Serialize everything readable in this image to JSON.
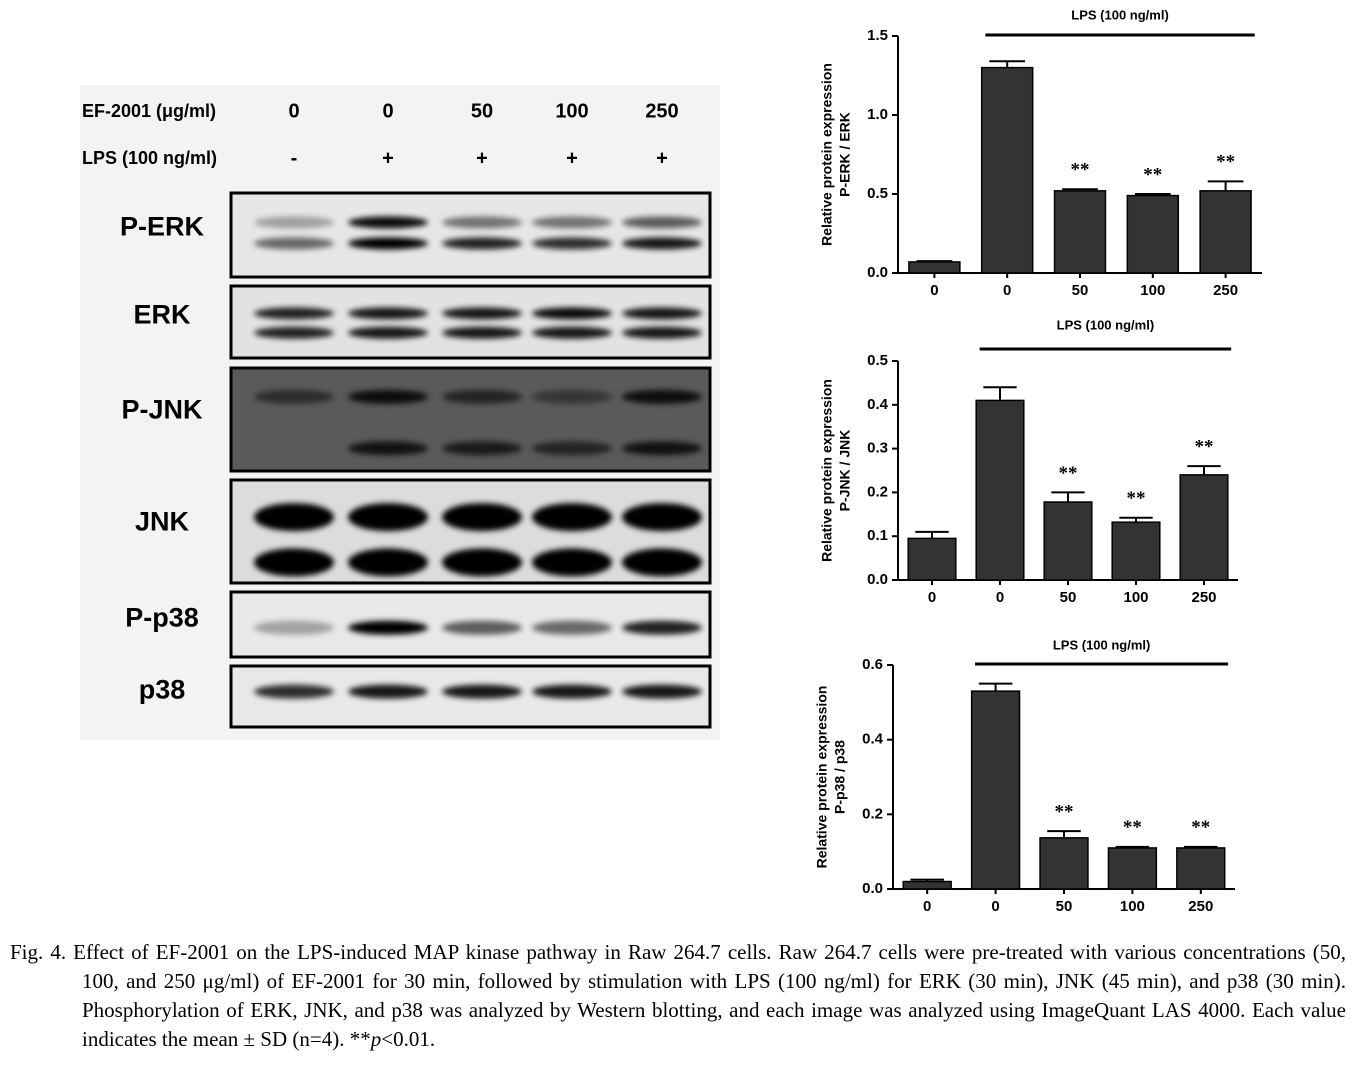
{
  "blot": {
    "header": {
      "ef_label": "EF-2001 (μg/ml)",
      "ef_doses": [
        "0",
        "0",
        "50",
        "100",
        "250"
      ],
      "lps_label": "LPS (100 ng/ml)",
      "lps_signs": [
        "-",
        "+",
        "+",
        "+",
        "+"
      ]
    },
    "rows": [
      "P-ERK",
      "ERK",
      "P-JNK",
      "JNK",
      "P-p38",
      "p38"
    ]
  },
  "chart_data": [
    {
      "type": "bar",
      "ylabel": [
        "Relative protein expression",
        "P-ERK / ERK"
      ],
      "lps_label": "LPS (100 ng/ml)",
      "categories": [
        "0",
        "0",
        "50",
        "100",
        "250"
      ],
      "values": [
        0.07,
        1.3,
        0.52,
        0.49,
        0.52
      ],
      "errors": [
        0.005,
        0.04,
        0.01,
        0.01,
        0.06
      ],
      "annotations": [
        null,
        null,
        "**",
        "**",
        "**"
      ],
      "color": "#333333",
      "ylim": [
        0,
        1.5
      ],
      "yticks": [
        {
          "value": 0,
          "label": "0.0"
        },
        {
          "value": 0.5,
          "label": "0.5"
        },
        {
          "value": 1,
          "label": "1.0"
        },
        {
          "value": 1.5,
          "label": "1.5"
        }
      ]
    },
    {
      "type": "bar",
      "ylabel": [
        "Relative protein expression",
        "P-JNK / JNK"
      ],
      "lps_label": "LPS (100 ng/ml)",
      "categories": [
        "0",
        "0",
        "50",
        "100",
        "250"
      ],
      "values": [
        0.095,
        0.41,
        0.178,
        0.132,
        0.24
      ],
      "errors": [
        0.015,
        0.03,
        0.022,
        0.01,
        0.02
      ],
      "annotations": [
        null,
        null,
        "**",
        "**",
        "**"
      ],
      "color": "#333333",
      "ylim": [
        0,
        0.5
      ],
      "yticks": [
        {
          "value": 0,
          "label": "0.0"
        },
        0.1,
        0.2,
        0.3,
        0.4,
        0.5
      ]
    },
    {
      "type": "bar",
      "ylabel": [
        "Relative protein expression",
        "P-p38 / p38"
      ],
      "lps_label": "LPS (100 ng/ml)",
      "categories": [
        "0",
        "0",
        "50",
        "100",
        "250"
      ],
      "values": [
        0.02,
        0.53,
        0.137,
        0.11,
        0.11
      ],
      "errors": [
        0.005,
        0.02,
        0.018,
        0.003,
        0.003
      ],
      "annotations": [
        null,
        null,
        "**",
        "**",
        "**"
      ],
      "color": "#333333",
      "ylim": [
        0,
        0.6
      ],
      "yticks": [
        {
          "value": 0,
          "label": "0.0"
        },
        0.2,
        0.4,
        0.6
      ]
    }
  ],
  "caption": [
    "Fig. 4. Effect of EF-2001 on the LPS-induced MAP kinase pathway in Raw 264.7 cells. Raw 264.7 cells were pre-treated with various concentrations (50, 100, and 250 μg/ml) of EF-2001 for 30 min, followed by stimulation with LPS (100 ng/ml) for ERK (30 min), JNK (45 min), and p38 (30 min). Phosphorylation of ERK, JNK, and p38 was analyzed by Western blotting, and each image was analyzed using ImageQuant LAS 4000. Each value indicates the mean ± SD (n=4). **",
    "p",
    "<0.01."
  ]
}
